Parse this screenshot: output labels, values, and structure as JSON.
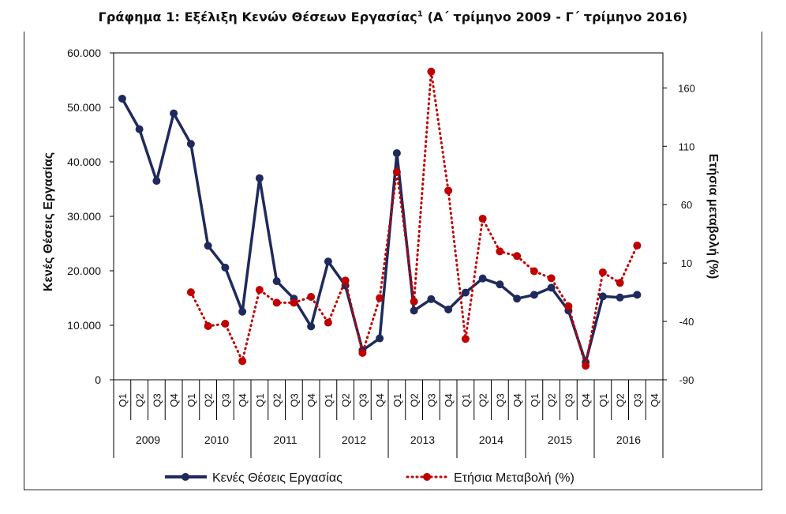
{
  "title": {
    "text": "Γράφημα 1: Εξέλιξη Κενών Θέσεων Εργασίας",
    "superscript": "1",
    "suffix": "(Α΄ τρίμηνο 2009 -  Γ΄ τρίμηνο 2016)"
  },
  "colors": {
    "vacancies": "#1f2a5c",
    "change": "#c00000",
    "axis": "#555555"
  },
  "chart_data": {
    "type": "line",
    "title": "Γράφημα 1: Εξέλιξη Κενών Θέσεων Εργασίας1 (Α΄ τρίμηνο 2009 -  Γ΄ τρίμηνο 2016)",
    "ylabel": "Κενές Θέσεις Εργασίας",
    "y2label": "Ετήσια μεταβολή (%)",
    "ylim": [
      0,
      60000
    ],
    "y2lim": [
      -90,
      190
    ],
    "yticks": [
      "0",
      "10.000",
      "20.000",
      "30.000",
      "40.000",
      "50.000",
      "60.000"
    ],
    "yticks_values": [
      0,
      10000,
      20000,
      30000,
      40000,
      50000,
      60000
    ],
    "y2ticks": [
      "-90",
      "-40",
      "10",
      "60",
      "110",
      "160"
    ],
    "y2ticks_values": [
      -90,
      -40,
      10,
      60,
      110,
      160
    ],
    "quarters": [
      "Q1",
      "Q2",
      "Q3",
      "Q4",
      "Q1",
      "Q2",
      "Q3",
      "Q4",
      "Q1",
      "Q2",
      "Q3",
      "Q4",
      "Q1",
      "Q2",
      "Q3",
      "Q4",
      "Q1",
      "Q2",
      "Q3",
      "Q4",
      "Q1",
      "Q2",
      "Q3",
      "Q4",
      "Q1",
      "Q2",
      "Q3",
      "Q4",
      "Q1",
      "Q2",
      "Q3",
      "Q4"
    ],
    "years": [
      "2009",
      "2010",
      "2011",
      "2012",
      "2013",
      "2014",
      "2015",
      "2016"
    ],
    "series": [
      {
        "name": "Κενές Θέσεις Εργασίας",
        "axis": "left",
        "style": "solid",
        "values": [
          51600,
          46000,
          36500,
          48900,
          43300,
          24600,
          20600,
          12500,
          37000,
          18100,
          14900,
          9800,
          21700,
          17300,
          5400,
          7600,
          41600,
          12700,
          14800,
          12900,
          16000,
          18600,
          17500,
          14900,
          15600,
          16900,
          12700,
          3200,
          15300,
          15100,
          15600,
          null
        ]
      },
      {
        "name": "Ετήσια Μεταβολή (%)",
        "axis": "right",
        "style": "dotted",
        "values": [
          null,
          null,
          null,
          null,
          -15,
          -44,
          -42,
          -74,
          -13,
          -24,
          -24,
          -19,
          -41,
          -5,
          -67,
          -20,
          88,
          -23,
          174,
          72,
          -55,
          48,
          20,
          16,
          3,
          -3,
          -27,
          -78,
          2,
          -7,
          25,
          null
        ]
      }
    ],
    "legend_position": "bottom"
  }
}
